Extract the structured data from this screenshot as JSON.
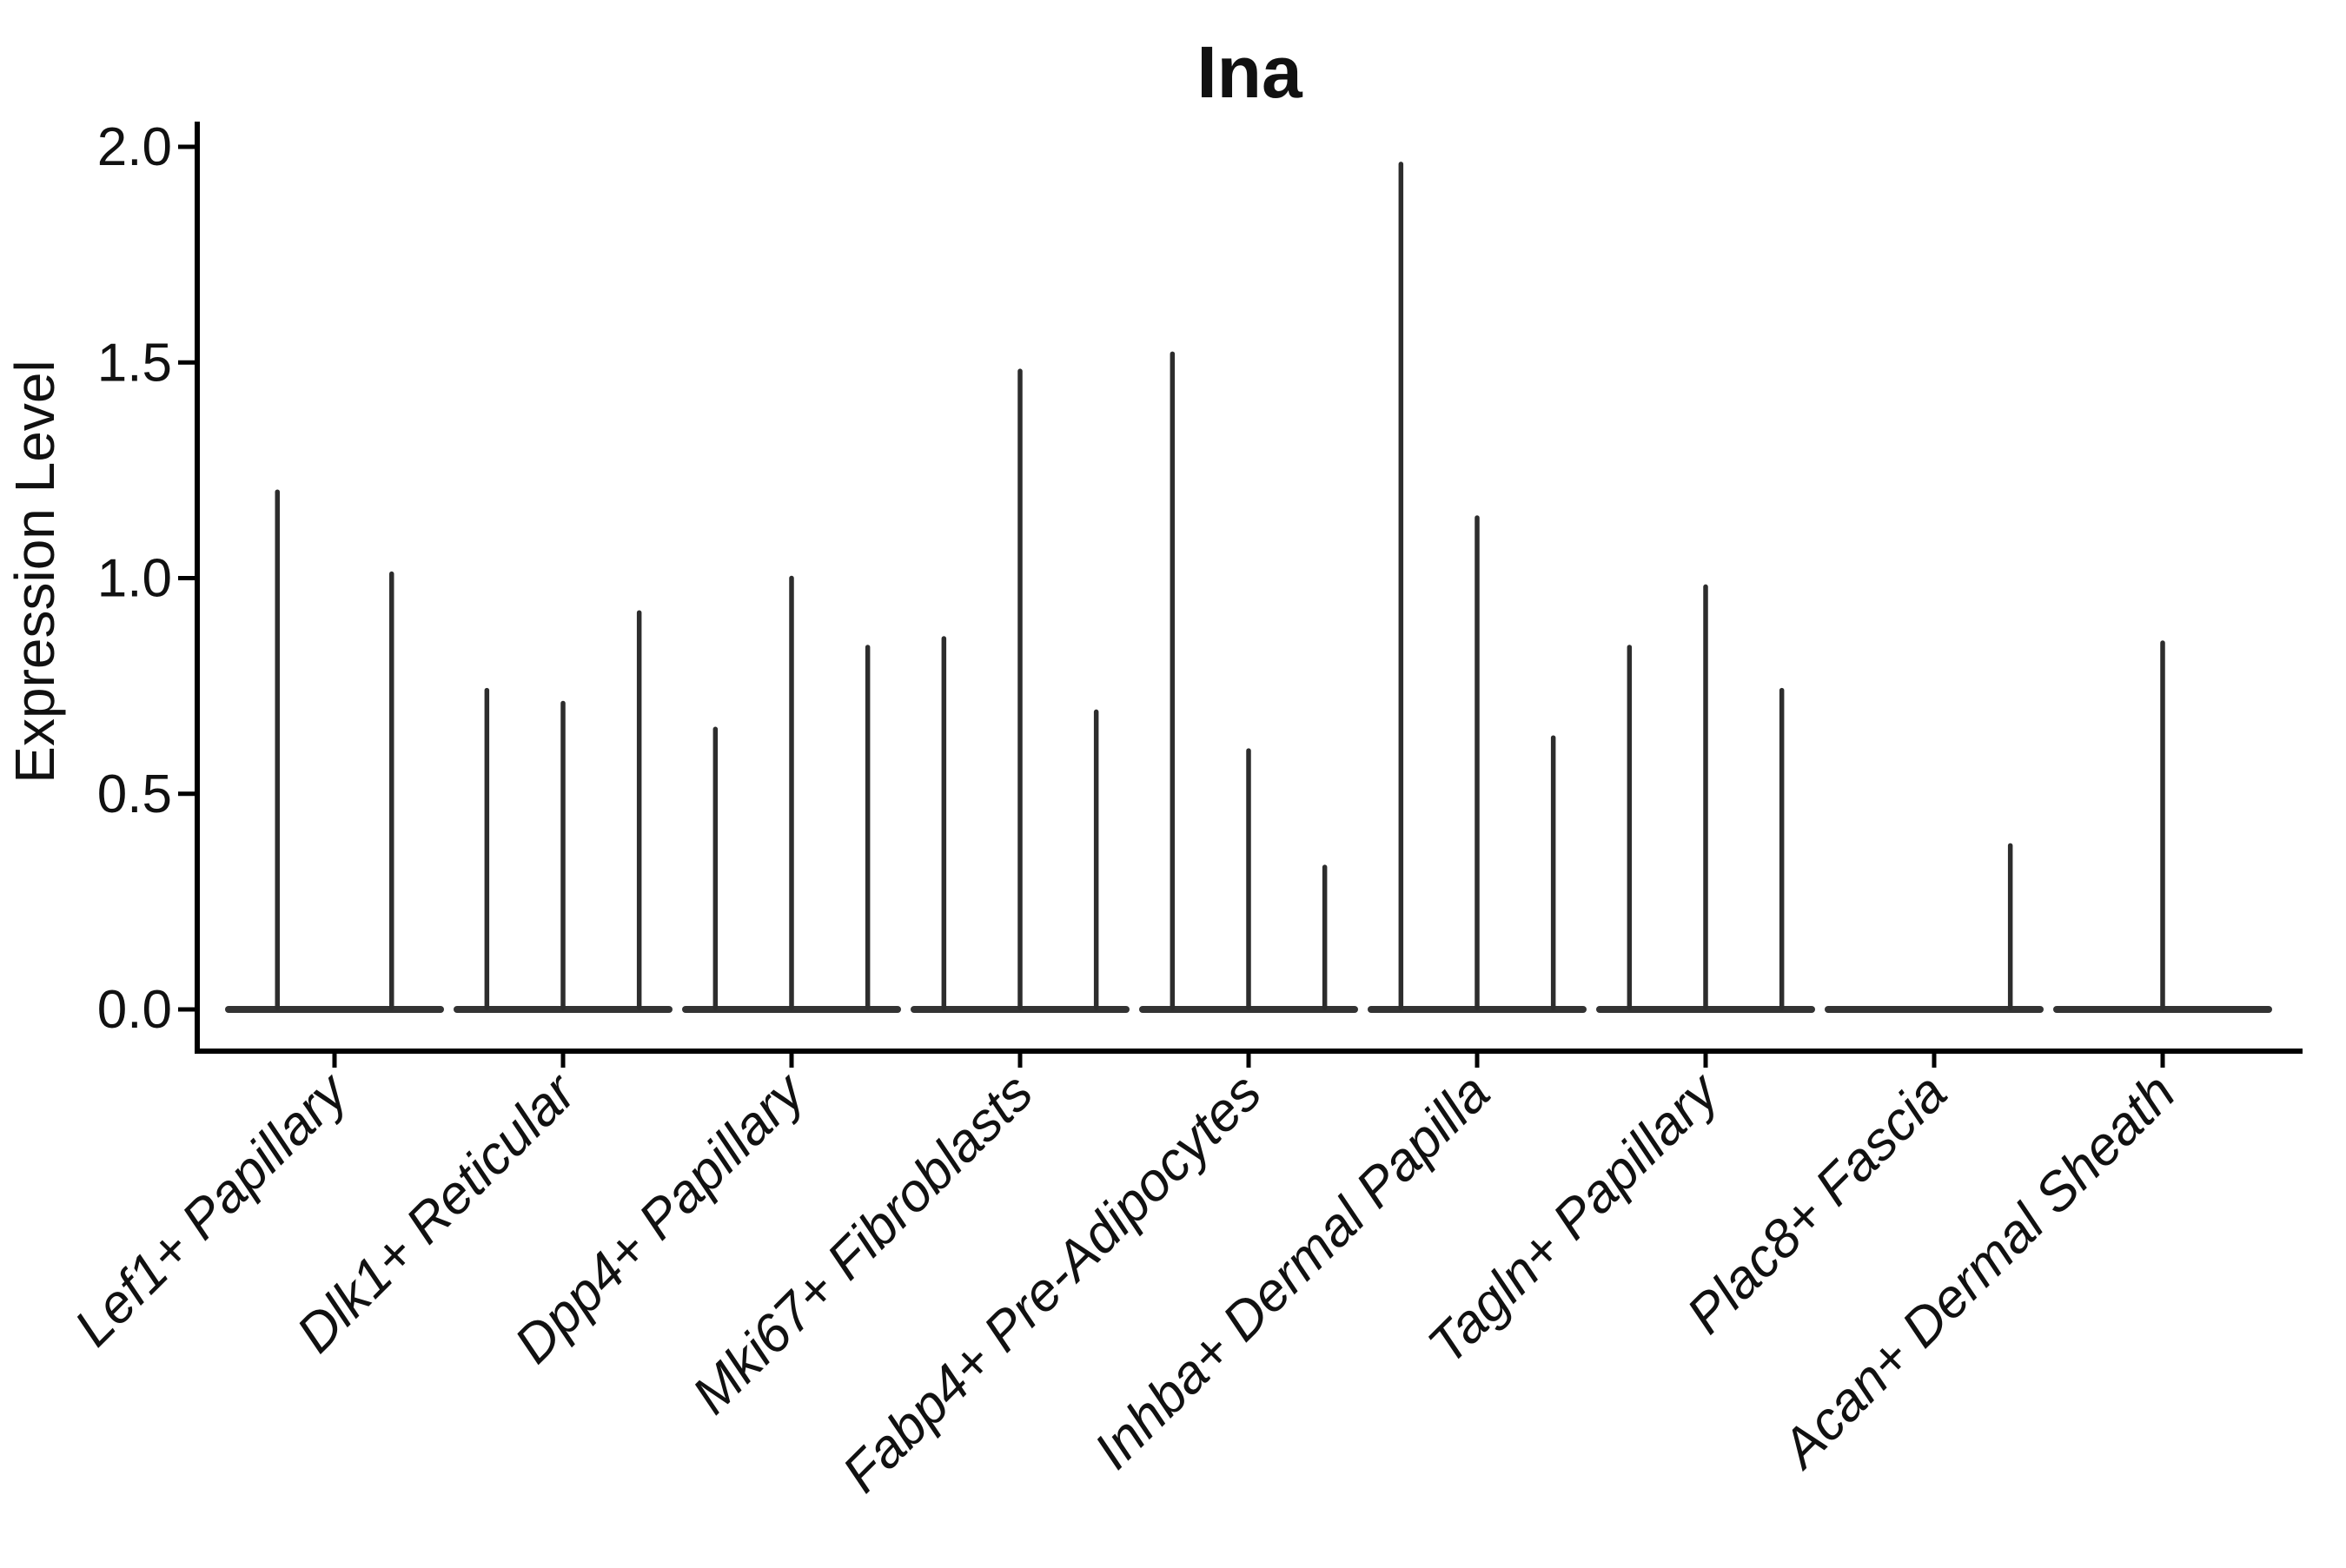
{
  "chart_data": {
    "type": "violin",
    "title": "Ina",
    "ylabel": "Expression Level",
    "xlabel": "",
    "ylim": [
      -0.1,
      2.06
    ],
    "yticks": [
      0.0,
      0.5,
      1.0,
      1.5,
      2.0
    ],
    "ytick_labels": [
      "0.0",
      "0.5",
      "1.0",
      "1.5",
      "2.0"
    ],
    "grid": false,
    "legend": "none",
    "categories": [
      "Lef1+ Papillary",
      "Dlk1+ Reticular",
      "Dpp4+ Papillary",
      "Mki67+ Fibroblasts",
      "Fabp4+ Pre-Adipocytes",
      "Inhba+ Dermal Papilla",
      "Tagln+ Papillary",
      "Plac8+ Fascia",
      "Acan+ Dermal Sheath"
    ],
    "series": [
      {
        "category": "Lef1+ Papillary",
        "groups": 2,
        "violins": [
          {
            "slot": 1,
            "max": 1.2
          },
          {
            "slot": 2,
            "max": 1.01
          }
        ]
      },
      {
        "category": "Dlk1+ Reticular",
        "groups": 3,
        "violins": [
          {
            "slot": 1,
            "max": 0.74
          },
          {
            "slot": 2,
            "max": 0.71
          },
          {
            "slot": 3,
            "max": 0.92
          }
        ]
      },
      {
        "category": "Dpp4+ Papillary",
        "groups": 3,
        "violins": [
          {
            "slot": 1,
            "max": 0.65
          },
          {
            "slot": 2,
            "max": 1.0
          },
          {
            "slot": 3,
            "max": 0.84
          }
        ]
      },
      {
        "category": "Mki67+ Fibroblasts",
        "groups": 3,
        "violins": [
          {
            "slot": 1,
            "max": 0.86
          },
          {
            "slot": 2,
            "max": 1.48
          },
          {
            "slot": 3,
            "max": 0.69
          }
        ]
      },
      {
        "category": "Fabp4+ Pre-Adipocytes",
        "groups": 3,
        "violins": [
          {
            "slot": 1,
            "max": 1.52
          },
          {
            "slot": 2,
            "max": 0.6
          },
          {
            "slot": 3,
            "max": 0.33
          }
        ]
      },
      {
        "category": "Inhba+ Dermal Papilla",
        "groups": 3,
        "violins": [
          {
            "slot": 1,
            "max": 1.96
          },
          {
            "slot": 2,
            "max": 1.14
          },
          {
            "slot": 3,
            "max": 0.63
          }
        ]
      },
      {
        "category": "Tagln+ Papillary",
        "groups": 3,
        "violins": [
          {
            "slot": 1,
            "max": 0.84
          },
          {
            "slot": 2,
            "max": 0.98
          },
          {
            "slot": 3,
            "max": 0.74
          }
        ]
      },
      {
        "category": "Plac8+ Fascia",
        "groups": 3,
        "violins": [
          {
            "slot": 3,
            "max": 0.38
          }
        ]
      },
      {
        "category": "Acan+ Dermal Sheath",
        "groups": 1,
        "violins": [
          {
            "slot": 1,
            "max": 0.85
          }
        ]
      }
    ],
    "baseline_value": 0.0,
    "colors": {
      "axis": "#000000",
      "text": "#111111",
      "violin": "#2d2d2d",
      "baseline": "#333333",
      "background": "#ffffff"
    }
  }
}
